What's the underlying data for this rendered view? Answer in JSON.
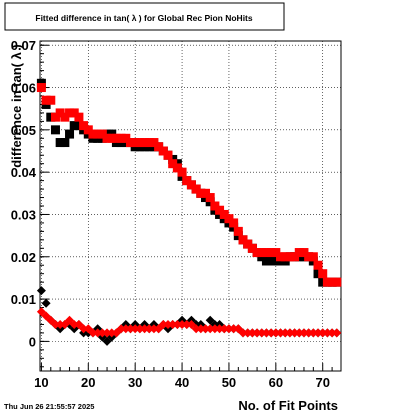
{
  "chart_data": {
    "type": "scatter",
    "title": "Fitted difference in tan( λ ) for Global Rec Pion NoHits",
    "xlabel": "No. of Fit Points",
    "ylabel": "difference in tan( λ )",
    "timestamp": "Thu Jun 26 21:55:57 2025",
    "xlim": [
      9.7,
      73.9
    ],
    "ylim": [
      -0.007,
      0.071
    ],
    "x_ticks": [
      10,
      20,
      30,
      40,
      50,
      60,
      70
    ],
    "y_ticks": [
      0,
      0.01,
      0.02,
      0.03,
      0.04,
      0.05,
      0.06,
      0.07
    ],
    "y_tick_labels": [
      "0",
      "0.01",
      "0.02",
      "0.03",
      "0.04",
      "0.05",
      "0.06",
      "0.07"
    ],
    "grid": true,
    "colors": {
      "black_series": "#000000",
      "red_series": "#ff0000"
    },
    "series": [
      {
        "marker": "square",
        "color": "#000000",
        "x": [
          10,
          11,
          12,
          13,
          14,
          15,
          16,
          17,
          18,
          19,
          20,
          21,
          22,
          23,
          24,
          25,
          26,
          27,
          28,
          29,
          30,
          31,
          32,
          33,
          34,
          35,
          36,
          37,
          38,
          39,
          40,
          41,
          42,
          43,
          44,
          45,
          46,
          47,
          48,
          49,
          50,
          51,
          52,
          53,
          54,
          55,
          56,
          57,
          58,
          59,
          60,
          61,
          62,
          63,
          64,
          65,
          66,
          67,
          68,
          69,
          70,
          71,
          72,
          73
        ],
        "y": [
          0.061,
          0.056,
          0.053,
          0.05,
          0.047,
          0.047,
          0.049,
          0.051,
          0.051,
          0.05,
          0.049,
          0.048,
          0.048,
          0.048,
          0.049,
          0.049,
          0.047,
          0.047,
          0.047,
          0.047,
          0.046,
          0.046,
          0.046,
          0.046,
          0.046,
          0.046,
          0.045,
          0.044,
          0.043,
          0.042,
          0.039,
          0.038,
          0.037,
          0.036,
          0.035,
          0.034,
          0.033,
          0.031,
          0.03,
          0.029,
          0.028,
          0.027,
          0.025,
          0.024,
          0.023,
          0.022,
          0.021,
          0.02,
          0.019,
          0.019,
          0.019,
          0.019,
          0.019,
          0.02,
          0.02,
          0.02,
          0.02,
          0.02,
          0.019,
          0.016,
          0.014,
          0.014,
          0.014,
          0.014
        ]
      },
      {
        "marker": "square",
        "color": "#ff0000",
        "x": [
          10,
          11,
          12,
          13,
          14,
          15,
          16,
          17,
          18,
          19,
          20,
          21,
          22,
          23,
          24,
          25,
          26,
          27,
          28,
          29,
          30,
          31,
          32,
          33,
          34,
          35,
          36,
          37,
          38,
          39,
          40,
          41,
          42,
          43,
          44,
          45,
          46,
          47,
          48,
          49,
          50,
          51,
          52,
          53,
          54,
          55,
          56,
          57,
          58,
          59,
          60,
          61,
          62,
          63,
          64,
          65,
          66,
          67,
          68,
          69,
          70,
          71,
          72,
          73
        ],
        "y": [
          0.06,
          0.057,
          0.057,
          0.053,
          0.054,
          0.053,
          0.054,
          0.054,
          0.053,
          0.051,
          0.05,
          0.049,
          0.049,
          0.049,
          0.048,
          0.048,
          0.048,
          0.048,
          0.048,
          0.047,
          0.047,
          0.047,
          0.047,
          0.047,
          0.047,
          0.046,
          0.045,
          0.044,
          0.042,
          0.041,
          0.04,
          0.038,
          0.037,
          0.036,
          0.035,
          0.035,
          0.034,
          0.032,
          0.031,
          0.03,
          0.029,
          0.028,
          0.026,
          0.024,
          0.023,
          0.022,
          0.021,
          0.021,
          0.021,
          0.021,
          0.021,
          0.02,
          0.02,
          0.02,
          0.02,
          0.021,
          0.021,
          0.02,
          0.02,
          0.018,
          0.016,
          0.014,
          0.014,
          0.014
        ]
      },
      {
        "marker": "diamond",
        "color": "#000000",
        "x": [
          10,
          11,
          12,
          13,
          14,
          15,
          16,
          17,
          18,
          19,
          20,
          21,
          22,
          23,
          24,
          25,
          26,
          27,
          28,
          29,
          30,
          31,
          32,
          33,
          34,
          35,
          36,
          37,
          38,
          39,
          40,
          41,
          42,
          43,
          44,
          45,
          46,
          47,
          48,
          49,
          50,
          51,
          52,
          53,
          54,
          55,
          56,
          57,
          58,
          59,
          60,
          61,
          62,
          63,
          64,
          65,
          66,
          67,
          68,
          69,
          70,
          71,
          72,
          73
        ],
        "y": [
          0.012,
          0.009,
          0.005,
          0.004,
          0.003,
          0.004,
          0.004,
          0.003,
          0.004,
          0.002,
          0.002,
          0.002,
          0.003,
          0.001,
          0.0,
          0.001,
          0.002,
          0.003,
          0.004,
          0.003,
          0.004,
          0.003,
          0.004,
          0.003,
          0.004,
          0.003,
          0.004,
          0.003,
          0.004,
          0.004,
          0.005,
          0.004,
          0.005,
          0.004,
          0.004,
          0.003,
          0.005,
          0.004,
          0.004,
          0.003,
          0.003,
          0.003,
          0.003,
          0.002,
          0.002,
          0.002,
          0.002,
          0.002,
          0.002,
          0.002,
          0.002,
          0.002,
          0.002,
          0.002,
          0.002,
          0.002,
          0.002,
          0.002,
          0.002,
          0.002,
          0.002,
          0.002,
          0.002,
          0.002
        ]
      },
      {
        "marker": "diamond",
        "color": "#ff0000",
        "x": [
          10,
          11,
          12,
          13,
          14,
          15,
          16,
          17,
          18,
          19,
          20,
          21,
          22,
          23,
          24,
          25,
          26,
          27,
          28,
          29,
          30,
          31,
          32,
          33,
          34,
          35,
          36,
          37,
          38,
          39,
          40,
          41,
          42,
          43,
          44,
          45,
          46,
          47,
          48,
          49,
          50,
          51,
          52,
          53,
          54,
          55,
          56,
          57,
          58,
          59,
          60,
          61,
          62,
          63,
          64,
          65,
          66,
          67,
          68,
          69,
          70,
          71,
          72,
          73
        ],
        "y": [
          0.007,
          0.006,
          0.005,
          0.004,
          0.004,
          0.004,
          0.005,
          0.004,
          0.004,
          0.003,
          0.003,
          0.002,
          0.002,
          0.002,
          0.002,
          0.002,
          0.002,
          0.003,
          0.003,
          0.003,
          0.003,
          0.003,
          0.003,
          0.003,
          0.003,
          0.003,
          0.004,
          0.004,
          0.004,
          0.004,
          0.004,
          0.004,
          0.004,
          0.003,
          0.003,
          0.003,
          0.003,
          0.003,
          0.003,
          0.003,
          0.003,
          0.003,
          0.003,
          0.002,
          0.002,
          0.002,
          0.002,
          0.002,
          0.002,
          0.002,
          0.002,
          0.002,
          0.002,
          0.002,
          0.002,
          0.002,
          0.002,
          0.002,
          0.002,
          0.002,
          0.002,
          0.002,
          0.002,
          0.002
        ]
      }
    ]
  }
}
